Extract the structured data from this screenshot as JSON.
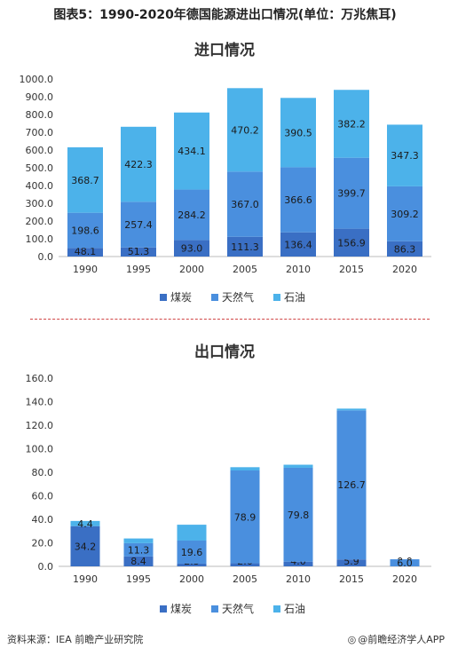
{
  "page": {
    "title": "图表5：1990-2020年德国能源进出口情况(单位：万兆焦耳)",
    "source": "资料来源：IEA 前瞻产业研究院",
    "brand": "@前瞻经济学人APP"
  },
  "colors": {
    "煤炭": "#3a6fc4",
    "天然气": "#4a8fde",
    "石油": "#4cb2ea"
  },
  "chart_data": [
    {
      "type": "bar",
      "stacked": true,
      "title": "进口情况",
      "categories": [
        "1990",
        "1995",
        "2000",
        "2005",
        "2010",
        "2015",
        "2020"
      ],
      "ylim": [
        0,
        1000
      ],
      "yticks": [
        "0.0",
        "100.0",
        "200.0",
        "300.0",
        "400.0",
        "500.0",
        "600.0",
        "700.0",
        "800.0",
        "900.0",
        "1000.0"
      ],
      "legend_position": "bottom",
      "series": [
        {
          "name": "煤炭",
          "values": [
            48.1,
            51.3,
            93.0,
            111.3,
            136.4,
            156.9,
            86.3
          ],
          "labels": [
            "48.1",
            "51.3",
            "93.0",
            "111.3",
            "136.4",
            "156.9",
            "86.3"
          ]
        },
        {
          "name": "天然气",
          "values": [
            198.6,
            257.4,
            284.2,
            367.0,
            366.6,
            399.7,
            309.2
          ],
          "labels": [
            "198.6",
            "257.4",
            "284.2",
            "367.0",
            "366.6",
            "399.7",
            "309.2"
          ]
        },
        {
          "name": "石油",
          "values": [
            368.7,
            422.3,
            434.1,
            470.2,
            390.5,
            382.2,
            347.3
          ],
          "labels": [
            "368.7",
            "422.3",
            "434.1",
            "470.2",
            "390.5",
            "382.2",
            "347.3"
          ]
        }
      ]
    },
    {
      "type": "bar",
      "stacked": true,
      "title": "出口情况",
      "categories": [
        "1990",
        "1995",
        "2000",
        "2005",
        "2010",
        "2015",
        "2020"
      ],
      "ylim": [
        0,
        160
      ],
      "yticks": [
        "0.0",
        "20.0",
        "40.0",
        "60.0",
        "80.0",
        "100.0",
        "120.0",
        "140.0",
        "160.0"
      ],
      "legend_position": "bottom",
      "series": [
        {
          "name": "煤炭",
          "values": [
            34.2,
            8.4,
            2.3,
            2.6,
            4.0,
            5.9,
            0.0
          ],
          "labels": [
            "34.2",
            "8.4",
            "2.3",
            "2.6",
            "4.0",
            "5.9",
            "0.0"
          ]
        },
        {
          "name": "天然气",
          "values": [
            0,
            11.3,
            19.6,
            78.9,
            79.8,
            126.7,
            6.0
          ],
          "labels": [
            "",
            "11.3",
            "19.6",
            "78.9",
            "79.8",
            "126.7",
            "6.0"
          ]
        },
        {
          "name": "石油",
          "values": [
            4.4,
            4.0,
            13.5,
            2.8,
            2.6,
            1.5,
            0.0
          ],
          "labels": [
            "4.4",
            "",
            "",
            "",
            "",
            "",
            ""
          ]
        }
      ]
    }
  ]
}
